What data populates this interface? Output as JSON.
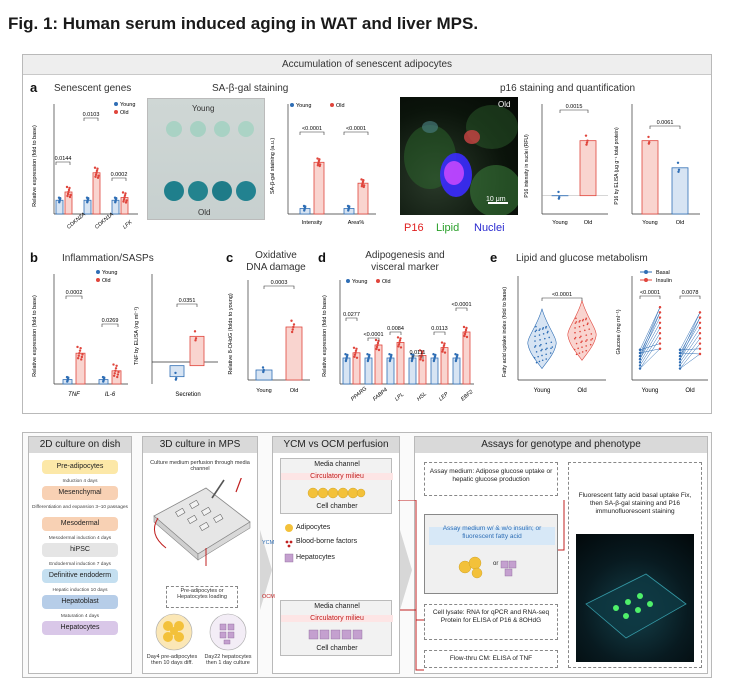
{
  "figure": {
    "title": "Fig. 1: Human serum induced aging in WAT and liver MPS.",
    "banner": "Accumulation of senescent adipocytes"
  },
  "panel_a": {
    "letter": "a",
    "genes_title": "Senescent genes",
    "sagal_title": "SA-β-gal staining",
    "p16_title": "p16 staining and quantification",
    "genes_ylabel": "Relative expression (fold to base)",
    "genes_pvals": [
      "0.0144",
      "0.0103",
      "0.0002"
    ],
    "genes_x": [
      "CDKN2A",
      "CDKN1A",
      "LFK"
    ],
    "legend_young": "Young",
    "legend_old": "Old",
    "sagal_young": "Young",
    "sagal_old": "Old",
    "sagal_ylabel": "SA-β-gal staining (a.u.)",
    "sagal_pvals": [
      "<0.0001",
      "<0.0001"
    ],
    "sagal_x": [
      "Intensity",
      "Area%"
    ],
    "micro_label_old": "Old",
    "scalebar": "10 μm",
    "stain_p16": "P16",
    "stain_lipid": "Lipid",
    "stain_nuclei": "Nuclei",
    "p16_ylabel": "P16 intensity in nuclei (RFU)",
    "p16_pval": "0.0015",
    "p16_elisa_ylabel": "P16 by ELISA (μg g⁻¹ total protein)",
    "p16_elisa_pval": "0.0061",
    "x_young": "Young",
    "x_old": "Old"
  },
  "panel_b": {
    "letter": "b",
    "title": "Inflammation/SASPs",
    "ylabel": "Relative expression (fold to base)",
    "pvals": [
      "0.0002",
      "0.0269"
    ],
    "x": [
      "TNF",
      "IL-6"
    ],
    "tnf_ylabel": "TNF by ELISA (ng ml⁻¹)",
    "tnf_pval": "0.0351",
    "tnf_x": "Secretion"
  },
  "panel_c": {
    "letter": "c",
    "title_line1": "Oxidative",
    "title_line2": "DNA damage",
    "ylabel": "Relative 8-OHdG (folds to young)",
    "pval": "0.0003",
    "x": [
      "Young",
      "Old"
    ]
  },
  "panel_d": {
    "letter": "d",
    "title_line1": "Adipogenesis and",
    "title_line2": "visceral marker",
    "ylabel": "Relative expression (fold to base)",
    "pvals": [
      "0.0277",
      "<0.0001",
      "0.0084",
      "0.0111",
      "0.0113",
      "<0.0001"
    ],
    "x": [
      "PPARG",
      "FABP4",
      "LPL",
      "HSL",
      "LEP",
      "EBF2"
    ]
  },
  "panel_e": {
    "letter": "e",
    "title": "Lipid and glucose metabolism",
    "fa_ylabel": "Fatty acid uptake index (fold to base)",
    "fa_pval": "<0.0001",
    "fa_x": [
      "Young",
      "Old"
    ],
    "glu_ylabel": "Glucose (mg ml⁻¹)",
    "glu_pvals": [
      "<0.0001",
      "0.0078"
    ],
    "glu_x": [
      "Young",
      "Old"
    ],
    "legend_basal": "Basal",
    "legend_insulin": "Insulin"
  },
  "bottom": {
    "col1_title": "2D culture on dish",
    "col2_title": "3D culture in MPS",
    "col3_title": "YCM vs OCM perfusion",
    "col4_title": "Assays for genotype and phenotype",
    "steps": [
      {
        "label": "Pre-adipocytes",
        "note": ""
      },
      {
        "label": "Mesenchymal",
        "note": "Induction 4 days"
      },
      {
        "label": "Mesodermal",
        "note": "Differentiation and expansion 3–10 passages"
      },
      {
        "label": "hiPSC",
        "note": "Mesodermal induction 4 days"
      },
      {
        "label": "Definitive endoderm",
        "note": "Endodermal induction 7 days"
      },
      {
        "label": "Hepatoblast",
        "note": "Hepatic induction 10 days"
      },
      {
        "label": "Hepatocytes",
        "note": "Maturation 4 days"
      }
    ],
    "mps_top_note": "Culture medium perfusion through media channel",
    "mps_loading": "Pre-adipocytes or Hepatocytes loading",
    "mps_cap1": "Day4 pre-adipocytes then 10 days diff.",
    "mps_cap2": "Day22 hepatocytes then 1 day culture",
    "media_channel": "Media channel",
    "circulatory": "Circulatory milieu",
    "cell_chamber": "Cell chamber",
    "legend_adipo": "Adipocytes",
    "legend_blood": "Blood-borne factors",
    "legend_hep": "Hepatocytes",
    "ycm": "YCM",
    "ocm": "OCM",
    "assay_medium": "Assay medium: Adipose glucose uptake or hepatic glucose production",
    "assay_mid": "Assay medium w/ & w/o insulin; or fluorescent fatty acid",
    "or_text": "or",
    "cell_lysate": "Cell lysate: RNA for qPCR and RNA-seq Protein for ELISA of P16 & 8OHdG",
    "flowthru": "Flow-thru CM: ELISA of TNF",
    "fluor_note": "Fluorescent fatty acid basal uptake Fix, then SA-β-gal staining and P16 immunofluorescent staining"
  },
  "colors": {
    "young": "#2f6eb5",
    "old": "#e0453c",
    "young_fill": "#d7e4f3",
    "old_fill": "#f9d4cf"
  },
  "chart_data": [
    {
      "type": "bar",
      "title": "Senescent genes",
      "categories": [
        "CDKN2A",
        "CDKN1A",
        "LFK"
      ],
      "series": [
        {
          "name": "Young",
          "values": [
            1.0,
            1.0,
            1.0
          ]
        },
        {
          "name": "Old",
          "values": [
            1.6,
            3.0,
            1.2
          ]
        }
      ],
      "ylabel": "Relative expression (fold to base)",
      "ylim": [
        0,
        8
      ]
    },
    {
      "type": "bar",
      "title": "SA-β-gal staining",
      "categories": [
        "Intensity",
        "Area%"
      ],
      "series": [
        {
          "name": "Young",
          "values": [
            5,
            5
          ]
        },
        {
          "name": "Old",
          "values": [
            47,
            28
          ]
        }
      ],
      "ylabel": "SA-β-gal staining (a.u.)",
      "ylim": [
        0,
        100
      ]
    },
    {
      "type": "bar",
      "categories": [
        "Young",
        "Old"
      ],
      "values": [
        0.0,
        0.6
      ],
      "ylabel": "P16 intensity in nuclei (RFU)",
      "ylim": [
        -0.2,
        1.0
      ]
    },
    {
      "type": "bar",
      "categories": [
        "Young",
        "Old"
      ],
      "values": [
        1.0,
        0.63
      ],
      "ylabel": "P16 by ELISA (μg g⁻¹ total protein)",
      "ylim": [
        0,
        1.5
      ]
    },
    {
      "type": "bar",
      "title": "Inflammation/SASPs",
      "categories": [
        "TNF",
        "IL-6"
      ],
      "series": [
        {
          "name": "Young",
          "values": [
            1.0,
            1.0
          ]
        },
        {
          "name": "Old",
          "values": [
            7.0,
            3.0
          ]
        }
      ],
      "ylabel": "Relative expression (fold to base)",
      "ylim": [
        0,
        25
      ]
    },
    {
      "type": "bar",
      "categories": [
        "Secretion"
      ],
      "series": [
        {
          "name": "Young",
          "values": [
            -0.3
          ]
        },
        {
          "name": "Old",
          "values": [
            0.8
          ]
        }
      ],
      "ylabel": "TNF by ELISA (ng ml⁻¹)",
      "ylim": [
        -0.5,
        2.5
      ]
    },
    {
      "type": "bar",
      "title": "Oxidative DNA damage",
      "categories": [
        "Young",
        "Old"
      ],
      "values": [
        1.0,
        5.3
      ],
      "ylabel": "Relative 8-OHdG (folds to young)",
      "ylim": [
        0,
        10
      ]
    },
    {
      "type": "bar",
      "title": "Adipogenesis and visceral marker",
      "categories": [
        "PPARG",
        "FABP4",
        "LPL",
        "HSL",
        "LEP",
        "EBF2"
      ],
      "series": [
        {
          "name": "Young",
          "values": [
            1,
            1,
            1,
            1,
            1,
            1
          ]
        },
        {
          "name": "Old",
          "values": [
            1.2,
            1.5,
            1.6,
            1.1,
            1.4,
            2.0
          ]
        }
      ],
      "ylabel": "Relative expression (fold to base)",
      "ylim": [
        0,
        4
      ]
    },
    {
      "type": "scatter",
      "title": "Lipid and glucose metabolism",
      "categories": [
        "Young",
        "Old"
      ],
      "values": [
        0.85,
        1.05
      ],
      "ylabel": "Fatty acid uptake index (fold to base)",
      "ylim": [
        0,
        2.5
      ]
    },
    {
      "type": "line",
      "categories": [
        "Young",
        "Old"
      ],
      "series": [
        {
          "name": "Basal",
          "values": [
            0.4,
            0.4
          ]
        },
        {
          "name": "Insulin",
          "values": [
            1.0,
            0.9
          ]
        }
      ],
      "ylabel": "Glucose (mg ml⁻¹)",
      "ylim": [
        0,
        2.0
      ]
    }
  ]
}
